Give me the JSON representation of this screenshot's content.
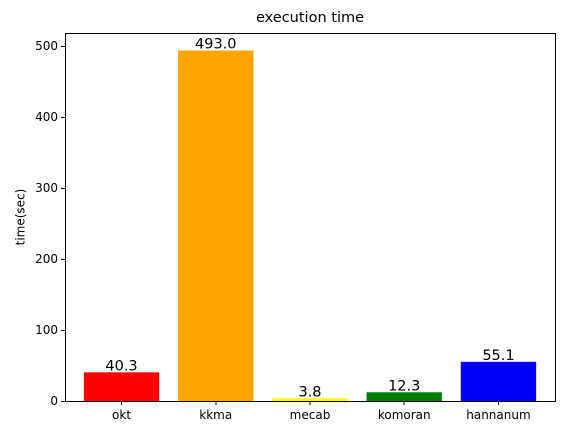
{
  "chart_data": {
    "type": "bar",
    "title": "execution time",
    "xlabel": "",
    "ylabel": "time(sec)",
    "categories": [
      "okt",
      "kkma",
      "mecab",
      "komoran",
      "hannanum"
    ],
    "values": [
      40.3,
      493.0,
      3.8,
      12.3,
      55.1
    ],
    "value_labels": [
      "40.3",
      "493.0",
      "3.8",
      "12.3",
      "55.1"
    ],
    "colors": [
      "#ff0000",
      "#ffa500",
      "#ffff00",
      "#008000",
      "#0000ff"
    ],
    "ylim": [
      0,
      517.65
    ],
    "yticks": [
      0,
      100,
      200,
      300,
      400,
      500
    ],
    "grid": false,
    "legend": "none"
  }
}
